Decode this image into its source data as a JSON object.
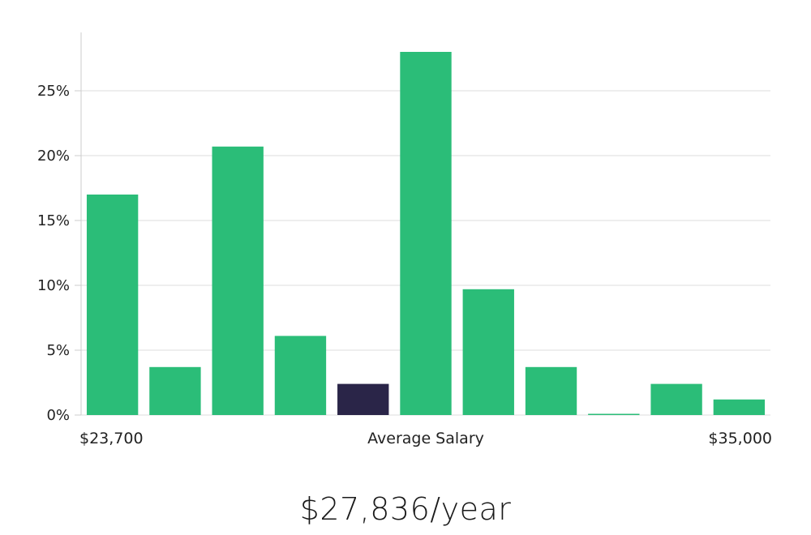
{
  "chart_data": {
    "type": "bar",
    "title": "",
    "xlabel": "Average Salary",
    "ylabel": "",
    "ylim": [
      0,
      29.5
    ],
    "yticks": [
      0,
      5,
      10,
      15,
      20,
      25
    ],
    "ytick_labels": [
      "0%",
      "5%",
      "10%",
      "15%",
      "20%",
      "25%"
    ],
    "x_range_labels": {
      "min": "$23,700",
      "center": "Average Salary",
      "max": "$35,000"
    },
    "values": [
      17.0,
      3.7,
      20.7,
      6.1,
      2.4,
      28.0,
      9.7,
      3.7,
      0.05,
      2.4,
      1.2
    ],
    "highlight_index": 4,
    "colors": {
      "bar": "#2bbd78",
      "highlight": "#2a2548",
      "grid": "#dddddd",
      "axis": "#cccccc"
    }
  },
  "summary": {
    "average_salary": "$27,836/year"
  }
}
